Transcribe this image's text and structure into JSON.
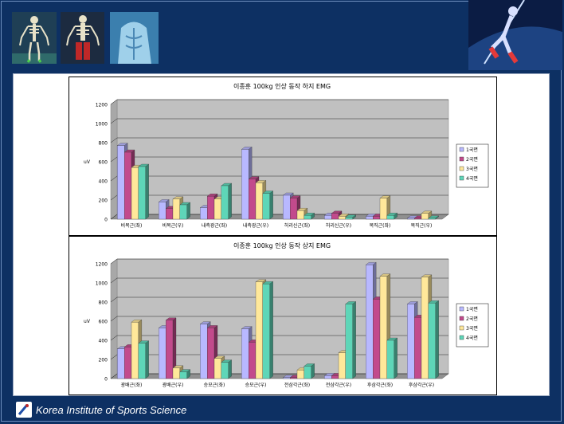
{
  "footer": {
    "institute": "Korea Institute of Sports Science"
  },
  "colors": {
    "background": "#0d3063",
    "plot_bg": "#c0c0c0",
    "series": [
      "#b8b8ff",
      "#c24a8c",
      "#ffe89a",
      "#5ed6b8"
    ]
  },
  "chart_data": [
    {
      "type": "bar",
      "title": "이종훈 100kg 인상 동작 하지 EMG",
      "ylabel": "uV",
      "xlabel": "",
      "ylim": [
        0,
        1200
      ],
      "yticks": [
        0,
        200,
        400,
        600,
        800,
        1000,
        1200
      ],
      "grid": true,
      "legend_position": "right",
      "three_d": true,
      "categories": [
        "비복근(좌)",
        "비복근(우)",
        "내측광근(좌)",
        "내측광근(우)",
        "허리신근(좌)",
        "허리신근(우)",
        "복직근(좌)",
        "복직근(우)"
      ],
      "series": [
        {
          "name": "1국면",
          "values": [
            770,
            180,
            120,
            730,
            250,
            40,
            30,
            10
          ]
        },
        {
          "name": "2국면",
          "values": [
            700,
            110,
            240,
            420,
            220,
            60,
            30,
            10
          ]
        },
        {
          "name": "3국면",
          "values": [
            540,
            210,
            210,
            380,
            90,
            30,
            220,
            60
          ]
        },
        {
          "name": "4국면",
          "values": [
            550,
            150,
            350,
            270,
            40,
            20,
            40,
            10
          ]
        }
      ]
    },
    {
      "type": "bar",
      "title": "이종훈 100kg 인상 동작 상지 EMG",
      "ylabel": "uV",
      "xlabel": "",
      "ylim": [
        0,
        1200
      ],
      "yticks": [
        0,
        200,
        400,
        600,
        800,
        1000,
        1200
      ],
      "grid": true,
      "legend_position": "right",
      "three_d": true,
      "categories": [
        "광배근(좌)",
        "광배근(우)",
        "승모근(좌)",
        "승모근(우)",
        "전삼각근(좌)",
        "전삼각근(우)",
        "후삼각근(좌)",
        "후삼각근(우)"
      ],
      "series": [
        {
          "name": "1국면",
          "values": [
            310,
            530,
            570,
            520,
            10,
            30,
            1190,
            780
          ]
        },
        {
          "name": "2국면",
          "values": [
            330,
            610,
            530,
            380,
            10,
            30,
            830,
            640
          ]
        },
        {
          "name": "3국면",
          "values": [
            590,
            110,
            210,
            1010,
            90,
            270,
            1070,
            1060
          ]
        },
        {
          "name": "4국면",
          "values": [
            370,
            70,
            170,
            990,
            130,
            780,
            400,
            790
          ]
        }
      ]
    }
  ]
}
